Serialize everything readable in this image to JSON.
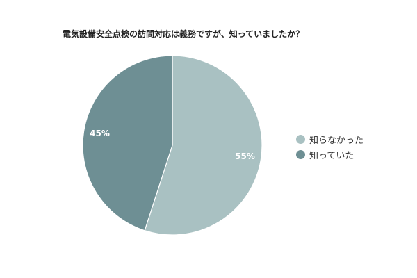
{
  "chart_data": {
    "type": "pie",
    "title": "電気設備安全点検の訪問対応は義務ですが、知っていましたか？",
    "legend_position": "right",
    "slices": [
      {
        "label": "知らなかった",
        "value": 55,
        "display": "55%",
        "color": "#a9c1c2"
      },
      {
        "label": "知っていた",
        "value": 45,
        "display": "45%",
        "color": "#6e8f94"
      }
    ]
  }
}
